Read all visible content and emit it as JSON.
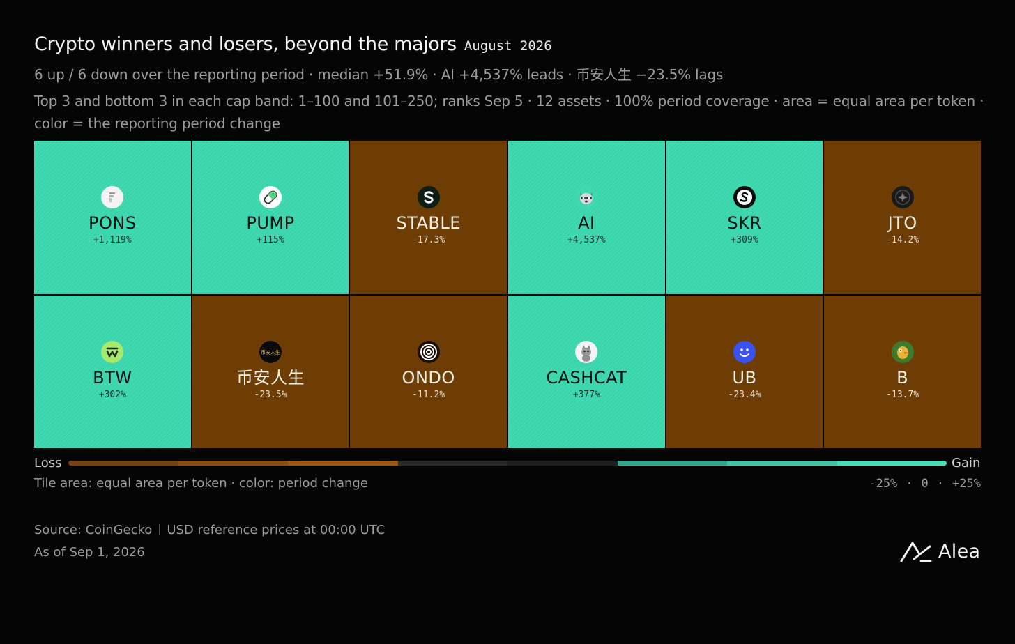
{
  "header": {
    "title": "Crypto winners and losers, beyond the majors",
    "date": "August 2026",
    "subtitle": "6 up / 6 down over the reporting period · median +51.9% · AI +4,537% leads · 币安人生 −23.5% lags",
    "description": "Top 3 and bottom 3 in each cap band: 1–100 and 101–250; ranks Sep 5 · 12 assets · 100% period coverage · area = equal area per token · color = the reporting period change"
  },
  "chart_data": {
    "type": "heatmap",
    "title": "Crypto winners and losers, beyond the majors",
    "layout": "treemap-equal-area",
    "tiles": [
      {
        "name": "PONS",
        "change": "+1,119%",
        "value": 1119,
        "direction": "gain",
        "icon": "pons-logo-icon"
      },
      {
        "name": "PUMP",
        "change": "+115%",
        "value": 115,
        "direction": "gain",
        "icon": "pill-logo-icon"
      },
      {
        "name": "STABLE",
        "change": "-17.3%",
        "value": -17.3,
        "direction": "loss",
        "icon": "stable-logo-icon"
      },
      {
        "name": "AI",
        "change": "+4,537%",
        "value": 4537,
        "direction": "gain",
        "icon": "raccoon-logo-icon"
      },
      {
        "name": "SKR",
        "change": "+309%",
        "value": 309,
        "direction": "gain",
        "icon": "skr-logo-icon"
      },
      {
        "name": "JTO",
        "change": "-14.2%",
        "value": -14.2,
        "direction": "loss",
        "icon": "jto-logo-icon"
      },
      {
        "name": "BTW",
        "change": "+302%",
        "value": 302,
        "direction": "gain",
        "icon": "btw-logo-icon"
      },
      {
        "name": "币安人生",
        "change": "-23.5%",
        "value": -23.5,
        "direction": "loss",
        "icon": "binance-life-logo-icon"
      },
      {
        "name": "ONDO",
        "change": "-11.2%",
        "value": -11.2,
        "direction": "loss",
        "icon": "ondo-logo-icon"
      },
      {
        "name": "CASHCAT",
        "change": "+377%",
        "value": 377,
        "direction": "gain",
        "icon": "cat-logo-icon"
      },
      {
        "name": "UB",
        "change": "-23.4%",
        "value": -23.4,
        "direction": "loss",
        "icon": "smiley-logo-icon"
      },
      {
        "name": "B",
        "change": "-13.7%",
        "value": -13.7,
        "direction": "loss",
        "icon": "bird-logo-icon"
      }
    ],
    "color_scale": {
      "range": [
        -25,
        25
      ],
      "loss_color": "#6e3d05",
      "gain_color": "#3fd9b1",
      "gradient": [
        "#7c4110",
        "#8e4b12",
        "#a35512",
        "#2a2a2a",
        "#1f1f1f",
        "#2fa88a",
        "#3cc7a2",
        "#43e1b8"
      ]
    }
  },
  "legend": {
    "loss_label": "Loss",
    "gain_label": "Gain",
    "note": "Tile area: equal area per token · color: period change",
    "ticks": [
      "-25%",
      "0",
      "+25%"
    ]
  },
  "footer": {
    "source": "Source: CoinGecko",
    "prices": "USD reference prices at 00:00 UTC",
    "as_of": "As of Sep 1, 2026",
    "brand": "Alea"
  }
}
